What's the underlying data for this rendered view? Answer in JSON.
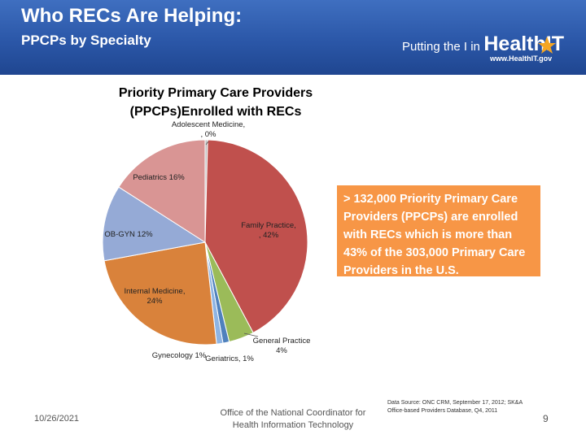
{
  "header": {
    "title": "Who RECs Are Helping:",
    "subtitle": "PPCPs by Specialty",
    "logo_text_small": "Putting the I in",
    "logo_text_big": "HealthIT",
    "logo_url": "www.HealthIT.gov"
  },
  "chart_data": {
    "type": "pie",
    "title": "Priority Primary Care Providers (PPCPs)Enrolled with RECs",
    "slices": [
      {
        "name": "Adolescent Medicine",
        "label": "Adolescent Medicine, , 0%",
        "value": 0.4,
        "color": "#bfbfbf"
      },
      {
        "name": "Family Practice",
        "label": "Family Practice, , 42%",
        "value": 42,
        "color": "#c0504d"
      },
      {
        "name": "General Practice",
        "label": "General Practice 4%",
        "value": 4,
        "color": "#9bbb59"
      },
      {
        "name": "Geriatrics",
        "label": "Geriatrics, 1%",
        "value": 1,
        "color": "#4f81bd"
      },
      {
        "name": "Gynecology",
        "label": "Gynecology 1%",
        "value": 1,
        "color": "#8eb4e3"
      },
      {
        "name": "Internal Medicine",
        "label": "Internal Medicine, 24%",
        "value": 24,
        "color": "#d9823b"
      },
      {
        "name": "OB-GYN",
        "label": "OB-GYN 12%",
        "value": 12,
        "color": "#95aad6"
      },
      {
        "name": "Pediatrics",
        "label": "Pediatrics 16%",
        "value": 16,
        "color": "#d99594"
      }
    ]
  },
  "callout": {
    "text": "> 132,000 Priority Primary Care Providers (PPCPs) are enrolled with RECs  which is more than 43% of the 303,000 Primary Care Providers in the U.S.",
    "color": "#f79646"
  },
  "footer": {
    "date": "10/26/2021",
    "office": "Office of the National Coordinator for Health Information Technology",
    "source": "Data Source: ONC CRM, September 17, 2012; SK&A Office-based Providers Database, Q4, 2011",
    "page": "9"
  }
}
